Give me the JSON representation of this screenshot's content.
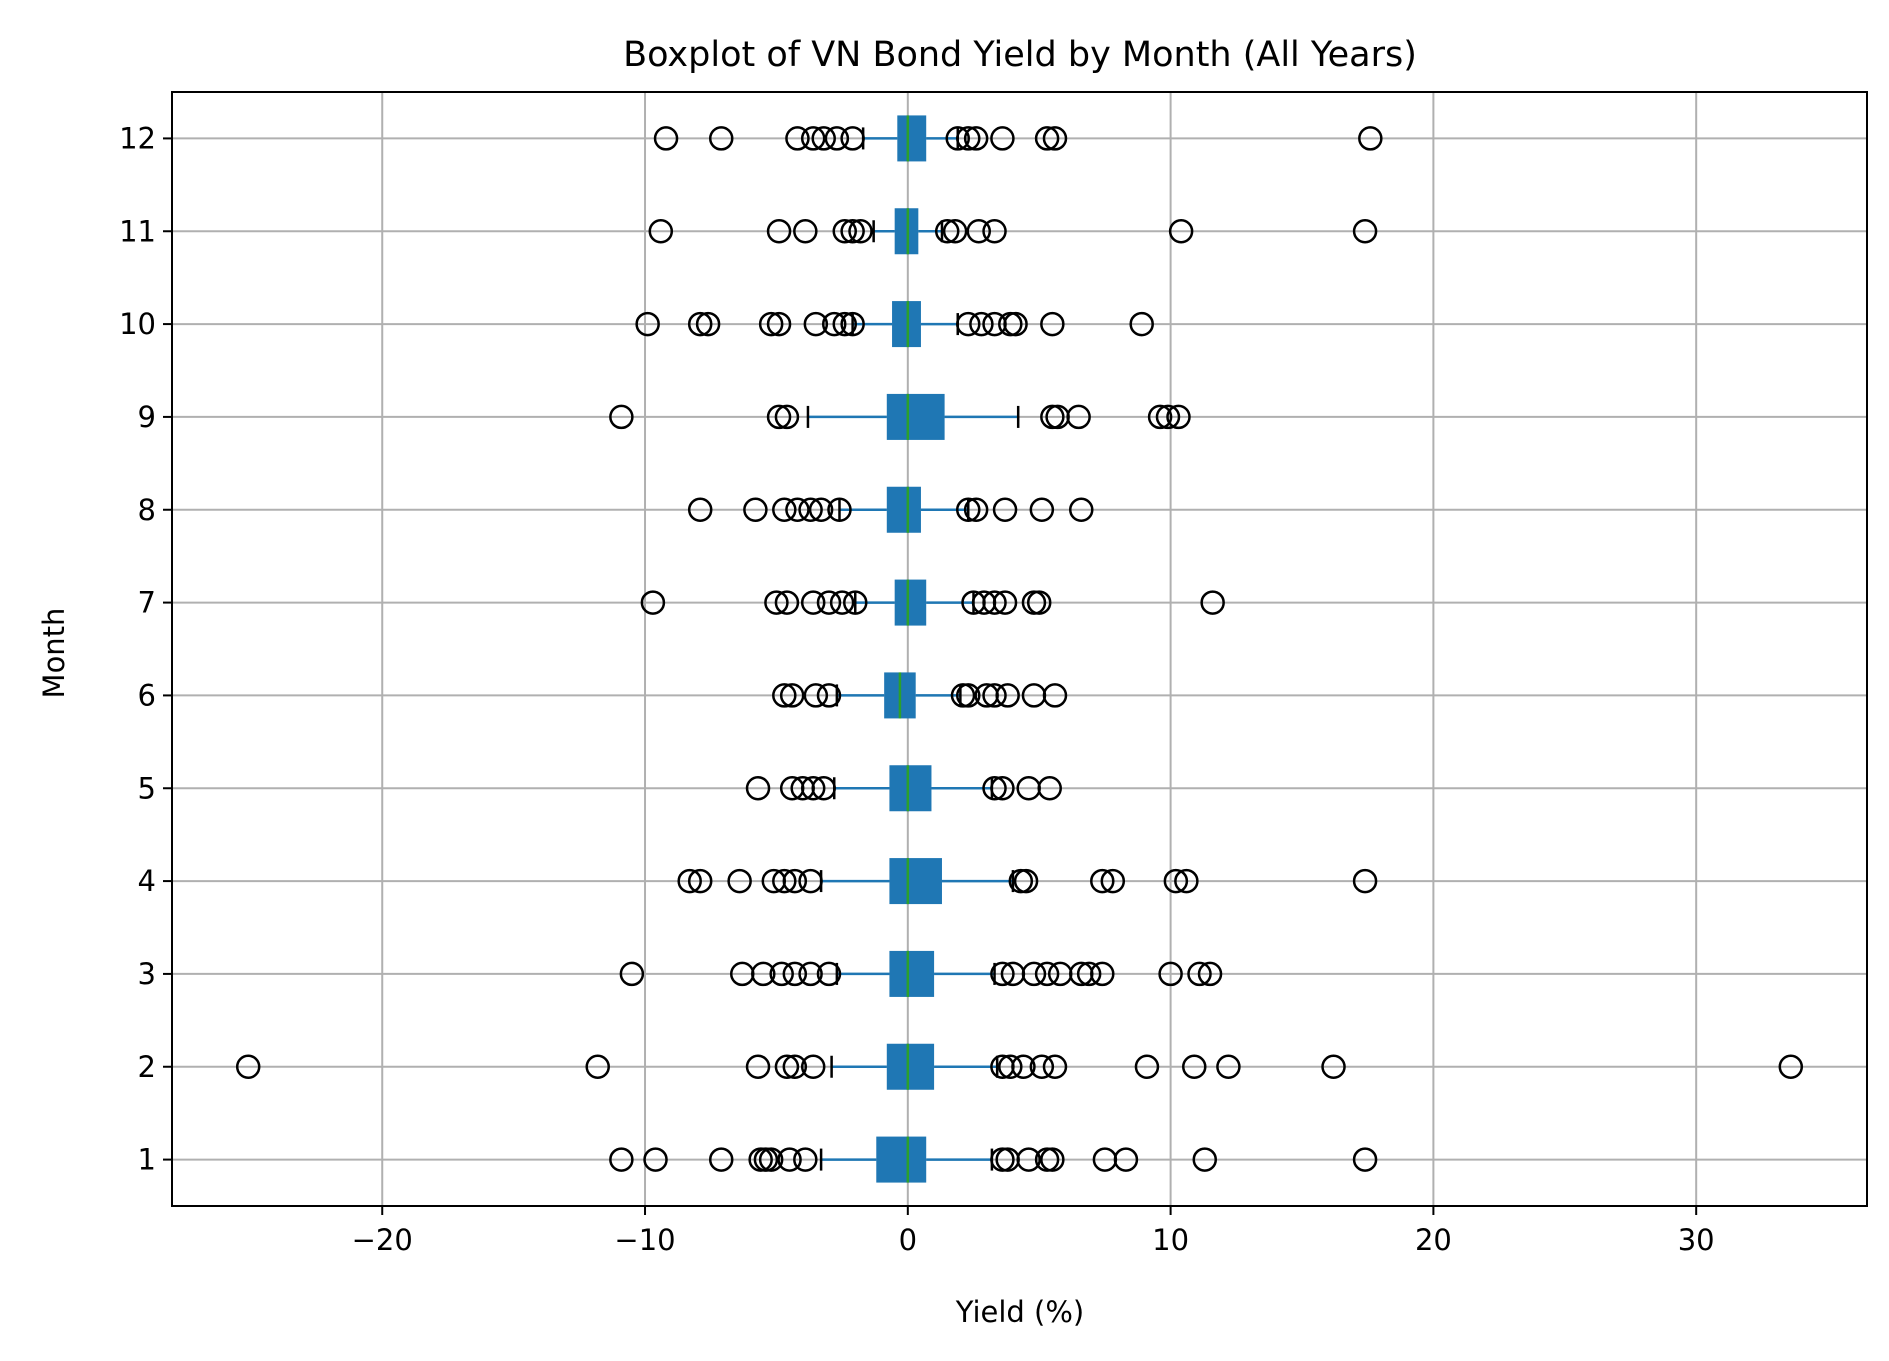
{
  "chart_data": {
    "type": "boxplot",
    "orientation": "horizontal",
    "title": "Boxplot of VN Bond Yield by Month (All Years)",
    "xlabel": "Yield (%)",
    "ylabel": "Month",
    "xlim": [
      -28,
      36.5
    ],
    "xticks": [
      -20,
      -10,
      0,
      10,
      20,
      30
    ],
    "xtick_labels": [
      "−20",
      "−10",
      "0",
      "10",
      "20",
      "30"
    ],
    "grid": true,
    "colors": {
      "box": "#1f77b4",
      "median": "#2ca02c",
      "whisker": "#1f77b4",
      "flier": "#000000",
      "grid": "#b0b0b0"
    },
    "series": [
      {
        "month": "1",
        "q1": -1.2,
        "median": 0.0,
        "q3": 0.7,
        "whisker_low": -3.3,
        "whisker_high": 3.2,
        "fliers": [
          -10.9,
          -9.6,
          -7.1,
          -5.6,
          -5.4,
          -5.2,
          -4.5,
          -3.9,
          3.6,
          3.8,
          4.6,
          5.3,
          5.5,
          7.5,
          8.3,
          11.3,
          17.4
        ]
      },
      {
        "month": "2",
        "q1": -0.8,
        "median": 0.0,
        "q3": 1.0,
        "whisker_low": -2.9,
        "whisker_high": 3.4,
        "fliers": [
          -25.1,
          -11.8,
          -5.7,
          -4.6,
          -4.3,
          -3.6,
          3.6,
          3.9,
          4.4,
          5.1,
          5.6,
          9.1,
          10.9,
          12.2,
          16.2,
          33.6
        ]
      },
      {
        "month": "3",
        "q1": -0.7,
        "median": 0.0,
        "q3": 1.0,
        "whisker_low": -2.7,
        "whisker_high": 3.3,
        "fliers": [
          -10.5,
          -6.3,
          -5.5,
          -4.8,
          -4.3,
          -3.7,
          -3.0,
          3.6,
          4.0,
          4.8,
          5.3,
          5.8,
          6.6,
          6.9,
          7.4,
          10.0,
          11.1,
          11.5
        ]
      },
      {
        "month": "4",
        "q1": -0.7,
        "median": 0.0,
        "q3": 1.3,
        "whisker_low": -3.3,
        "whisker_high": 4.0,
        "fliers": [
          -8.3,
          -7.9,
          -6.4,
          -5.1,
          -4.7,
          -4.3,
          -3.7,
          4.3,
          4.5,
          7.4,
          7.8,
          10.2,
          10.6,
          17.4
        ]
      },
      {
        "month": "5",
        "q1": -0.7,
        "median": 0.0,
        "q3": 0.9,
        "whisker_low": -2.8,
        "whisker_high": 3.2,
        "fliers": [
          -5.7,
          -4.4,
          -4.0,
          -3.6,
          -3.2,
          3.3,
          3.6,
          4.6,
          5.4
        ]
      },
      {
        "month": "6",
        "q1": -0.9,
        "median": -0.3,
        "q3": 0.3,
        "whisker_low": -2.7,
        "whisker_high": 2.0,
        "fliers": [
          -4.7,
          -4.4,
          -3.5,
          -3.0,
          2.1,
          2.3,
          3.0,
          3.3,
          3.8,
          4.8,
          5.6
        ]
      },
      {
        "month": "7",
        "q1": -0.5,
        "median": 0.0,
        "q3": 0.7,
        "whisker_low": -2.0,
        "whisker_high": 2.5,
        "fliers": [
          -9.7,
          -5.0,
          -4.6,
          -3.6,
          -3.0,
          -2.5,
          -2.0,
          2.5,
          2.9,
          3.3,
          3.7,
          4.8,
          5.0,
          11.6
        ]
      },
      {
        "month": "8",
        "q1": -0.8,
        "median": 0.0,
        "q3": 0.5,
        "whisker_low": -2.6,
        "whisker_high": 2.3,
        "fliers": [
          -7.9,
          -5.8,
          -4.7,
          -4.2,
          -3.7,
          -3.3,
          -2.6,
          2.3,
          2.6,
          3.7,
          5.1,
          6.6
        ]
      },
      {
        "month": "9",
        "q1": -0.8,
        "median": 0.0,
        "q3": 1.4,
        "whisker_low": -3.8,
        "whisker_high": 4.2,
        "fliers": [
          -10.9,
          -4.9,
          -4.6,
          5.5,
          5.7,
          6.5,
          9.6,
          9.9,
          10.3
        ]
      },
      {
        "month": "10",
        "q1": -0.6,
        "median": 0.0,
        "q3": 0.5,
        "whisker_low": -2.1,
        "whisker_high": 1.9,
        "fliers": [
          -9.9,
          -7.9,
          -7.6,
          -5.2,
          -4.9,
          -3.5,
          -2.8,
          -2.4,
          -2.1,
          2.3,
          2.8,
          3.3,
          3.9,
          4.1,
          5.5,
          8.9
        ]
      },
      {
        "month": "11",
        "q1": -0.5,
        "median": 0.0,
        "q3": 0.4,
        "whisker_low": -1.3,
        "whisker_high": 1.3,
        "fliers": [
          -9.4,
          -4.9,
          -3.9,
          -2.4,
          -2.1,
          -1.8,
          1.5,
          1.8,
          2.7,
          3.3,
          10.4,
          17.4
        ]
      },
      {
        "month": "12",
        "q1": -0.4,
        "median": 0.0,
        "q3": 0.7,
        "whisker_low": -1.7,
        "whisker_high": 1.9,
        "fliers": [
          -9.2,
          -7.1,
          -4.2,
          -3.6,
          -3.2,
          -2.7,
          -2.1,
          1.9,
          2.3,
          2.6,
          3.6,
          5.3,
          5.6,
          17.6
        ]
      }
    ]
  }
}
